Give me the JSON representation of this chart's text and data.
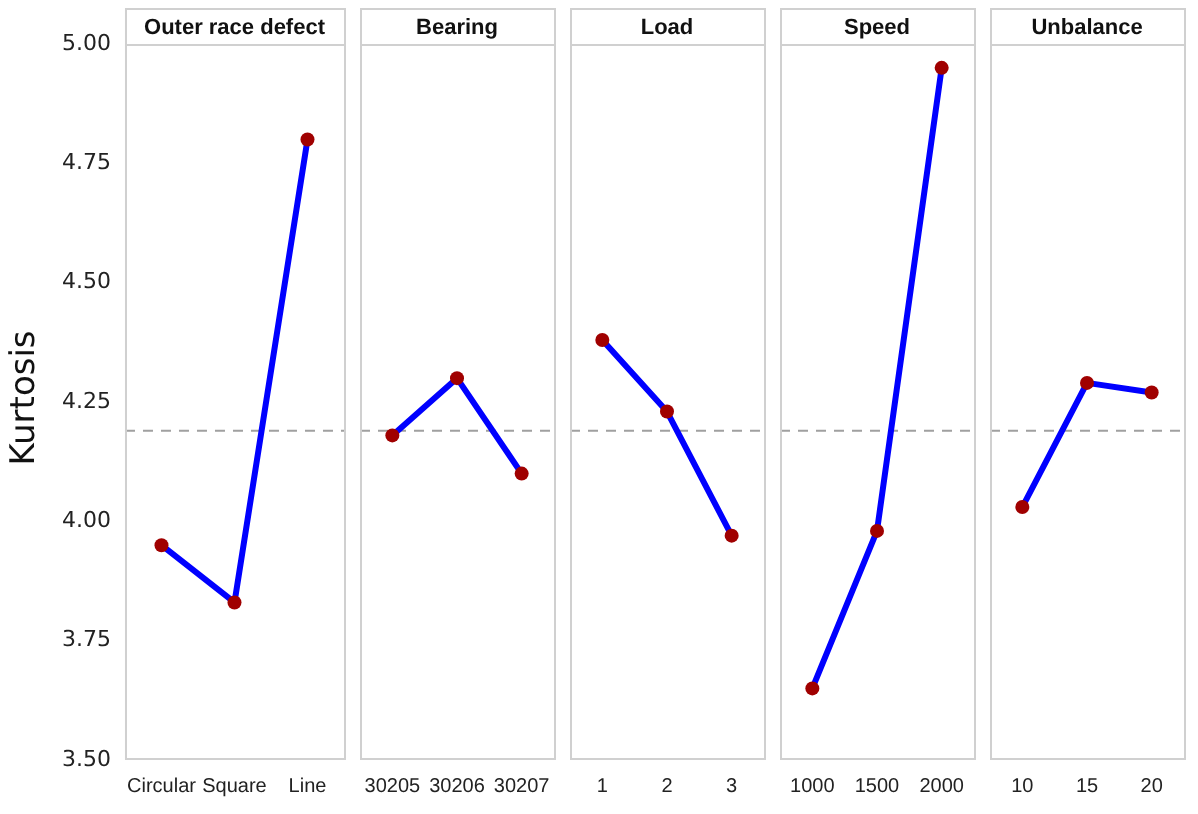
{
  "chart_data": [
    {
      "type": "line",
      "title": "Outer race defect",
      "ylabel": "Kurtosis",
      "categories": [
        "Circular",
        "Square",
        "Line"
      ],
      "values": [
        3.95,
        3.83,
        4.8
      ],
      "color": "#0000ff",
      "colors": [
        "#a00000",
        "#a00000",
        "#a00000"
      ],
      "marker": "circle",
      "ylim": [
        3.5,
        5.0
      ],
      "yticks": [
        {
          "value": 3.5,
          "label": "3.50"
        },
        {
          "value": 3.75,
          "label": "3.75"
        },
        {
          "value": 4.0,
          "label": "4.00"
        },
        {
          "value": 4.25,
          "label": "4.25"
        },
        {
          "value": 4.5,
          "label": "4.50"
        },
        {
          "value": 4.75,
          "label": "4.75"
        },
        {
          "value": 5.0,
          "label": "5.00"
        }
      ],
      "ref_lines": [
        {
          "axis": "y",
          "value": 4.19,
          "color": "#a0a0a0",
          "line_style": "dashed"
        }
      ],
      "grid": false,
      "legend": false
    },
    {
      "type": "line",
      "title": "Bearing",
      "categories": [
        "30205",
        "30206",
        "30207"
      ],
      "values": [
        4.18,
        4.3,
        4.1
      ],
      "color": "#0000ff",
      "colors": [
        "#a00000",
        "#a00000",
        "#a00000"
      ],
      "marker": "circle",
      "ylim": [
        3.5,
        5.0
      ],
      "tick_labels": "x",
      "ref_lines": [
        {
          "axis": "y",
          "value": 4.19,
          "color": "#a0a0a0",
          "line_style": "dashed"
        }
      ],
      "grid": false,
      "legend": false
    },
    {
      "type": "line",
      "title": "Load",
      "categories": [
        "1",
        "2",
        "3"
      ],
      "values": [
        4.38,
        4.23,
        3.97
      ],
      "color": "#0000ff",
      "colors": [
        "#a00000",
        "#a00000",
        "#a00000"
      ],
      "marker": "circle",
      "ylim": [
        3.5,
        5.0
      ],
      "tick_labels": "x",
      "ref_lines": [
        {
          "axis": "y",
          "value": 4.19,
          "color": "#a0a0a0",
          "line_style": "dashed"
        }
      ],
      "grid": false,
      "legend": false
    },
    {
      "type": "line",
      "title": "Speed",
      "categories": [
        "1000",
        "1500",
        "2000"
      ],
      "values": [
        3.65,
        3.98,
        4.95
      ],
      "color": "#0000ff",
      "colors": [
        "#a00000",
        "#a00000",
        "#a00000"
      ],
      "marker": "circle",
      "ylim": [
        3.5,
        5.0
      ],
      "tick_labels": "x",
      "ref_lines": [
        {
          "axis": "y",
          "value": 4.19,
          "color": "#a0a0a0",
          "line_style": "dashed"
        }
      ],
      "grid": false,
      "legend": false
    },
    {
      "type": "line",
      "title": "Unbalance",
      "categories": [
        "10",
        "15",
        "20"
      ],
      "values": [
        4.03,
        4.29,
        4.27
      ],
      "color": "#0000ff",
      "colors": [
        "#a00000",
        "#a00000",
        "#a00000"
      ],
      "marker": "circle",
      "ylim": [
        3.5,
        5.0
      ],
      "tick_labels": "x",
      "ref_lines": [
        {
          "axis": "y",
          "value": 4.19,
          "color": "#a0a0a0",
          "line_style": "dashed"
        }
      ],
      "grid": false,
      "legend": false
    }
  ]
}
